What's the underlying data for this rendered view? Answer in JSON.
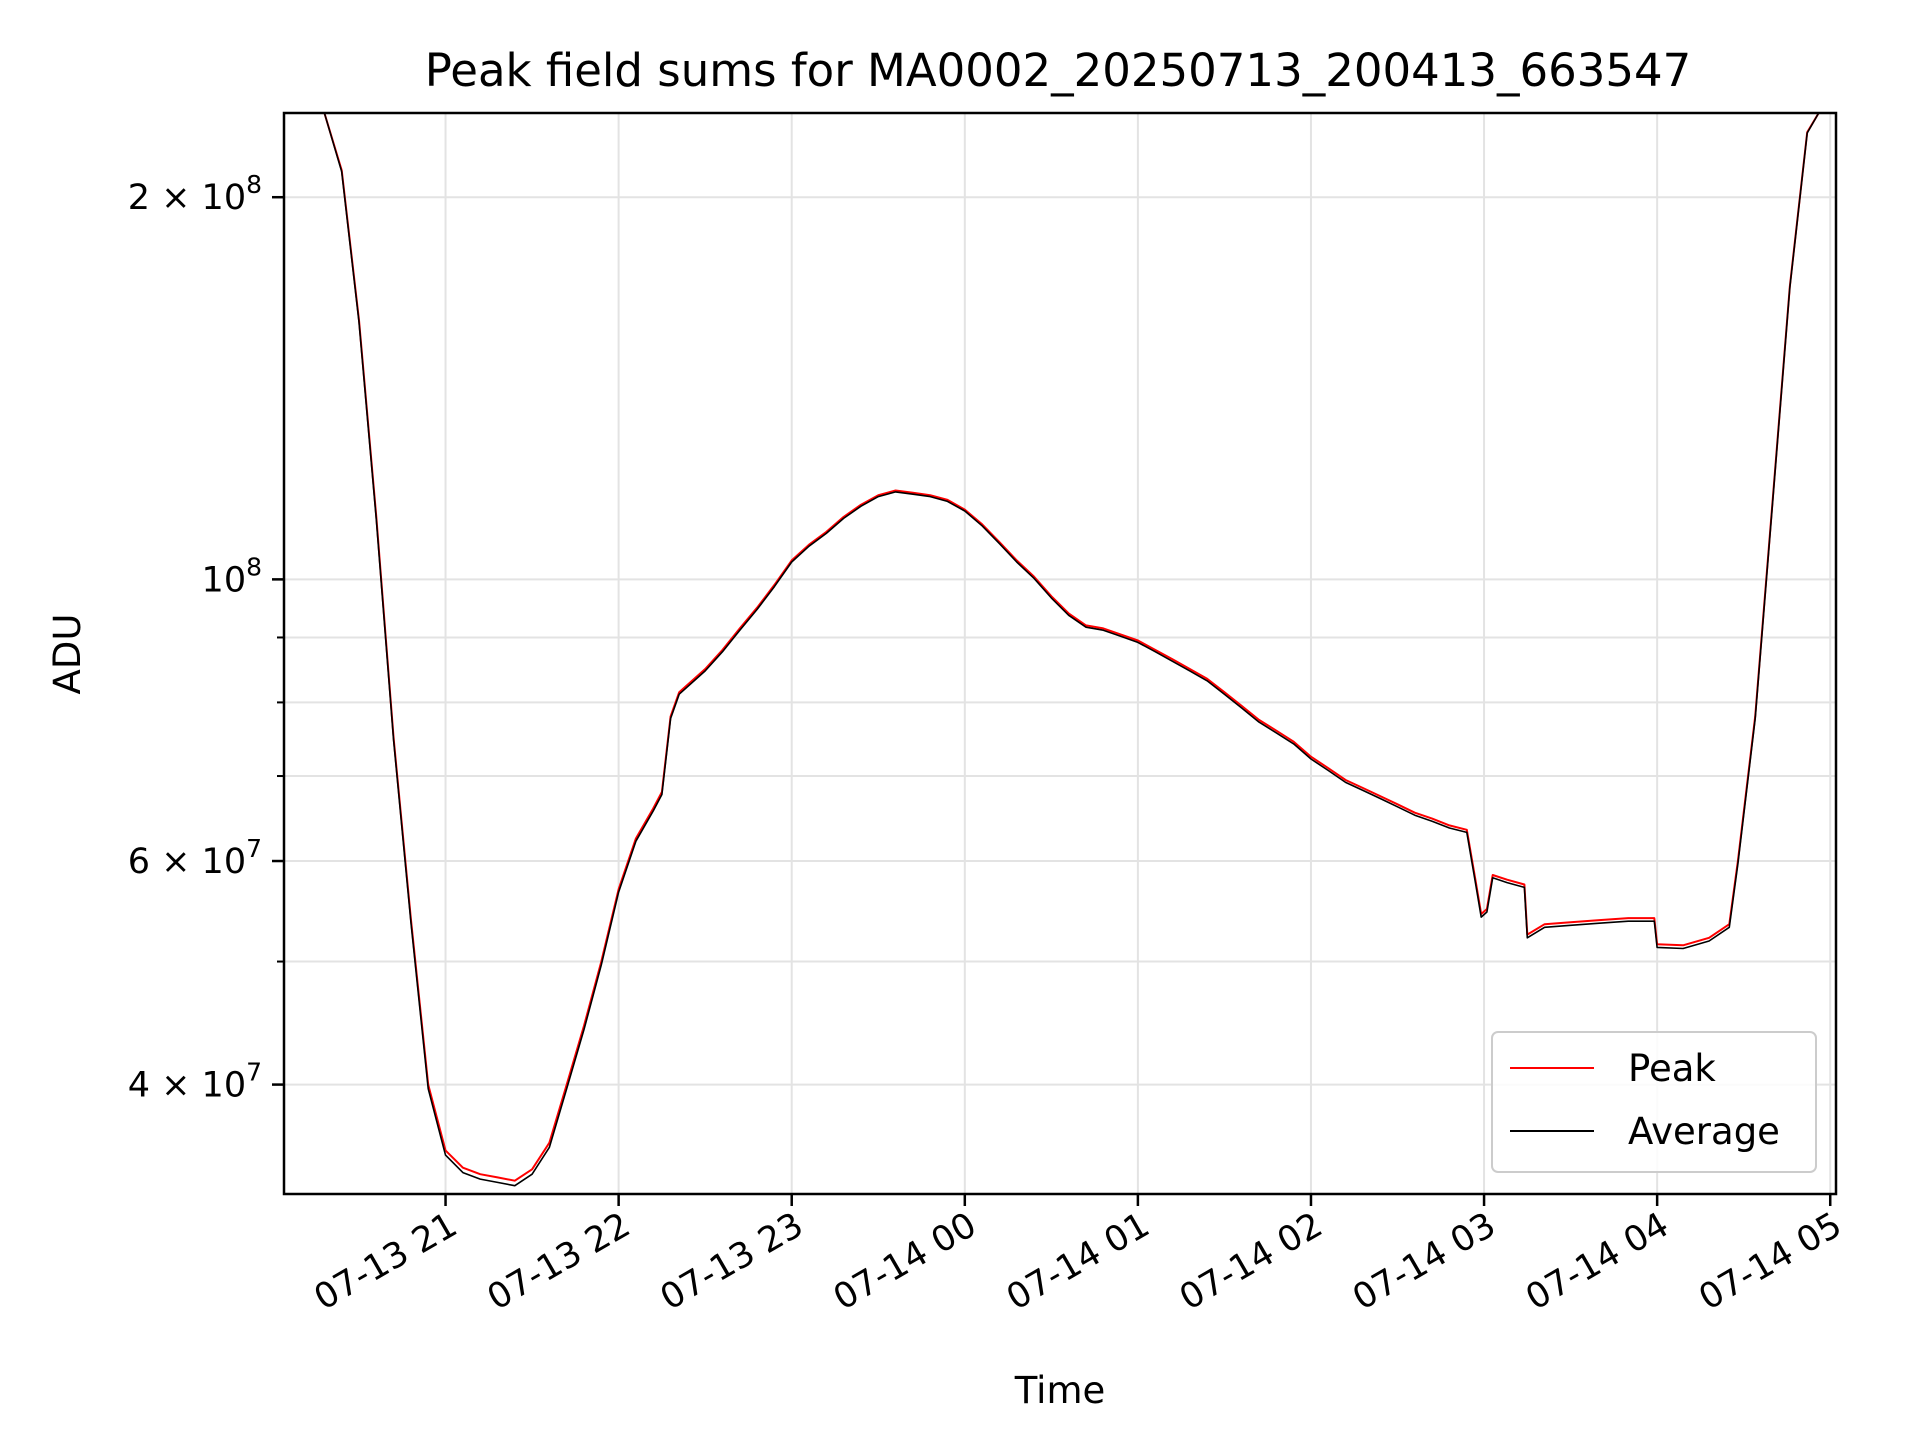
{
  "chart_data": {
    "type": "line",
    "title": "Peak field sums for MA0002_20250713_200413_663547",
    "xlabel": "Time",
    "ylabel": "ADU",
    "y_scale": "log",
    "grid": true,
    "legend_position": "lower-right",
    "xlim": [
      "2025-07-13 20:04",
      "2025-07-14 05:02"
    ],
    "ylim": [
      32800000,
      233000000
    ],
    "x_ticks": [
      {
        "label": "07-13 21",
        "value": "2025-07-13 21:00"
      },
      {
        "label": "07-13 22",
        "value": "2025-07-13 22:00"
      },
      {
        "label": "07-13 23",
        "value": "2025-07-13 23:00"
      },
      {
        "label": "07-14 00",
        "value": "2025-07-14 00:00"
      },
      {
        "label": "07-14 01",
        "value": "2025-07-14 01:00"
      },
      {
        "label": "07-14 02",
        "value": "2025-07-14 02:00"
      },
      {
        "label": "07-14 03",
        "value": "2025-07-14 03:00"
      },
      {
        "label": "07-14 04",
        "value": "2025-07-14 04:00"
      },
      {
        "label": "07-14 05",
        "value": "2025-07-14 05:00"
      }
    ],
    "y_major_ticks": [
      {
        "value": 40000000,
        "coef": "4",
        "exp": "7"
      },
      {
        "value": 60000000,
        "coef": "6",
        "exp": "7"
      },
      {
        "value": 100000000,
        "coef": "",
        "exp": "8"
      },
      {
        "value": 200000000,
        "coef": "2",
        "exp": "8"
      }
    ],
    "y_minor_ticks": [
      50000000,
      70000000,
      80000000,
      90000000
    ],
    "series": [
      {
        "name": "Peak",
        "color": "#ff0000",
        "points": [
          [
            "2025-07-13 20:04",
            233000000
          ],
          [
            "2025-07-13 20:18",
            233000000
          ],
          [
            "2025-07-13 20:24",
            210000000
          ],
          [
            "2025-07-13 20:30",
            160000000
          ],
          [
            "2025-07-13 20:36",
            112000000
          ],
          [
            "2025-07-13 20:42",
            75000000
          ],
          [
            "2025-07-13 20:48",
            54000000
          ],
          [
            "2025-07-13 20:54",
            40000000
          ],
          [
            "2025-07-13 21:00",
            35500000
          ],
          [
            "2025-07-13 21:06",
            34400000
          ],
          [
            "2025-07-13 21:12",
            34000000
          ],
          [
            "2025-07-13 21:18",
            33800000
          ],
          [
            "2025-07-13 21:24",
            33600000
          ],
          [
            "2025-07-13 21:30",
            34300000
          ],
          [
            "2025-07-13 21:36",
            36000000
          ],
          [
            "2025-07-13 21:42",
            40000000
          ],
          [
            "2025-07-13 21:48",
            44500000
          ],
          [
            "2025-07-13 21:54",
            50000000
          ],
          [
            "2025-07-13 22:00",
            57000000
          ],
          [
            "2025-07-13 22:06",
            62500000
          ],
          [
            "2025-07-13 22:12",
            66000000
          ],
          [
            "2025-07-13 22:15",
            68000000
          ],
          [
            "2025-07-13 22:18",
            78000000
          ],
          [
            "2025-07-13 22:21",
            81500000
          ],
          [
            "2025-07-13 22:30",
            85000000
          ],
          [
            "2025-07-13 22:36",
            88000000
          ],
          [
            "2025-07-13 22:42",
            91500000
          ],
          [
            "2025-07-13 22:48",
            95000000
          ],
          [
            "2025-07-13 22:54",
            99000000
          ],
          [
            "2025-07-13 23:00",
            103500000
          ],
          [
            "2025-07-13 23:06",
            106500000
          ],
          [
            "2025-07-13 23:12",
            109000000
          ],
          [
            "2025-07-13 23:18",
            112000000
          ],
          [
            "2025-07-13 23:24",
            114500000
          ],
          [
            "2025-07-13 23:30",
            116500000
          ],
          [
            "2025-07-13 23:36",
            117500000
          ],
          [
            "2025-07-13 23:42",
            117000000
          ],
          [
            "2025-07-13 23:48",
            116500000
          ],
          [
            "2025-07-13 23:54",
            115500000
          ],
          [
            "2025-07-14 00:00",
            113500000
          ],
          [
            "2025-07-14 00:06",
            110500000
          ],
          [
            "2025-07-14 00:12",
            107000000
          ],
          [
            "2025-07-14 00:18",
            103500000
          ],
          [
            "2025-07-14 00:24",
            100500000
          ],
          [
            "2025-07-14 00:30",
            97000000
          ],
          [
            "2025-07-14 00:36",
            94000000
          ],
          [
            "2025-07-14 00:42",
            92000000
          ],
          [
            "2025-07-14 00:48",
            91500000
          ],
          [
            "2025-07-14 00:54",
            90500000
          ],
          [
            "2025-07-14 01:00",
            89500000
          ],
          [
            "2025-07-14 01:06",
            88000000
          ],
          [
            "2025-07-14 01:12",
            86500000
          ],
          [
            "2025-07-14 01:18",
            85000000
          ],
          [
            "2025-07-14 01:24",
            83500000
          ],
          [
            "2025-07-14 01:30",
            81500000
          ],
          [
            "2025-07-14 01:36",
            79500000
          ],
          [
            "2025-07-14 01:42",
            77500000
          ],
          [
            "2025-07-14 01:48",
            76000000
          ],
          [
            "2025-07-14 01:54",
            74500000
          ],
          [
            "2025-07-14 02:00",
            72500000
          ],
          [
            "2025-07-14 02:06",
            71000000
          ],
          [
            "2025-07-14 02:12",
            69500000
          ],
          [
            "2025-07-14 02:18",
            68500000
          ],
          [
            "2025-07-14 02:24",
            67500000
          ],
          [
            "2025-07-14 02:30",
            66500000
          ],
          [
            "2025-07-14 02:36",
            65500000
          ],
          [
            "2025-07-14 02:42",
            64800000
          ],
          [
            "2025-07-14 02:48",
            64000000
          ],
          [
            "2025-07-14 02:54",
            63500000
          ],
          [
            "2025-07-14 02:57",
            58000000
          ],
          [
            "2025-07-14 02:59",
            54500000
          ],
          [
            "2025-07-14 03:01",
            55000000
          ],
          [
            "2025-07-14 03:03",
            58500000
          ],
          [
            "2025-07-14 03:08",
            58000000
          ],
          [
            "2025-07-14 03:14",
            57500000
          ],
          [
            "2025-07-14 03:15",
            52500000
          ],
          [
            "2025-07-14 03:21",
            53500000
          ],
          [
            "2025-07-14 03:30",
            53700000
          ],
          [
            "2025-07-14 03:40",
            53900000
          ],
          [
            "2025-07-14 03:50",
            54100000
          ],
          [
            "2025-07-14 03:59",
            54100000
          ],
          [
            "2025-07-14 04:00",
            51600000
          ],
          [
            "2025-07-14 04:09",
            51500000
          ],
          [
            "2025-07-14 04:18",
            52200000
          ],
          [
            "2025-07-14 04:25",
            53500000
          ],
          [
            "2025-07-14 04:28",
            60000000
          ],
          [
            "2025-07-14 04:34",
            78000000
          ],
          [
            "2025-07-14 04:40",
            115000000
          ],
          [
            "2025-07-14 04:46",
            170000000
          ],
          [
            "2025-07-14 04:52",
            225000000
          ],
          [
            "2025-07-14 04:56",
            233000000
          ],
          [
            "2025-07-14 05:02",
            233000000
          ]
        ]
      },
      {
        "name": "Average",
        "color": "#000000",
        "points": [
          [
            "2025-07-13 20:04",
            233000000
          ],
          [
            "2025-07-13 20:18",
            233000000
          ],
          [
            "2025-07-13 20:24",
            209500000
          ],
          [
            "2025-07-13 20:30",
            159500000
          ],
          [
            "2025-07-13 20:36",
            111500000
          ],
          [
            "2025-07-13 20:42",
            74700000
          ],
          [
            "2025-07-13 20:48",
            53700000
          ],
          [
            "2025-07-13 20:54",
            39700000
          ],
          [
            "2025-07-13 21:00",
            35200000
          ],
          [
            "2025-07-13 21:06",
            34100000
          ],
          [
            "2025-07-13 21:12",
            33700000
          ],
          [
            "2025-07-13 21:18",
            33500000
          ],
          [
            "2025-07-13 21:24",
            33300000
          ],
          [
            "2025-07-13 21:30",
            34000000
          ],
          [
            "2025-07-13 21:36",
            35700000
          ],
          [
            "2025-07-13 21:42",
            39700000
          ],
          [
            "2025-07-13 21:48",
            44200000
          ],
          [
            "2025-07-13 21:54",
            49700000
          ],
          [
            "2025-07-13 22:00",
            56700000
          ],
          [
            "2025-07-13 22:06",
            62200000
          ],
          [
            "2025-07-13 22:12",
            65700000
          ],
          [
            "2025-07-13 22:15",
            67700000
          ],
          [
            "2025-07-13 22:18",
            77700000
          ],
          [
            "2025-07-13 22:21",
            81200000
          ],
          [
            "2025-07-13 22:30",
            84700000
          ],
          [
            "2025-07-13 22:36",
            87700000
          ],
          [
            "2025-07-13 22:42",
            91200000
          ],
          [
            "2025-07-13 22:48",
            94700000
          ],
          [
            "2025-07-13 22:54",
            98700000
          ],
          [
            "2025-07-13 23:00",
            103200000
          ],
          [
            "2025-07-13 23:06",
            106200000
          ],
          [
            "2025-07-13 23:12",
            108700000
          ],
          [
            "2025-07-13 23:18",
            111700000
          ],
          [
            "2025-07-13 23:24",
            114200000
          ],
          [
            "2025-07-13 23:30",
            116200000
          ],
          [
            "2025-07-13 23:36",
            117200000
          ],
          [
            "2025-07-13 23:42",
            116700000
          ],
          [
            "2025-07-13 23:48",
            116200000
          ],
          [
            "2025-07-13 23:54",
            115200000
          ],
          [
            "2025-07-14 00:00",
            113200000
          ],
          [
            "2025-07-14 00:06",
            110200000
          ],
          [
            "2025-07-14 00:12",
            106700000
          ],
          [
            "2025-07-14 00:18",
            103200000
          ],
          [
            "2025-07-14 00:24",
            100200000
          ],
          [
            "2025-07-14 00:30",
            96700000
          ],
          [
            "2025-07-14 00:36",
            93700000
          ],
          [
            "2025-07-14 00:42",
            91700000
          ],
          [
            "2025-07-14 00:48",
            91200000
          ],
          [
            "2025-07-14 00:54",
            90200000
          ],
          [
            "2025-07-14 01:00",
            89200000
          ],
          [
            "2025-07-14 01:06",
            87700000
          ],
          [
            "2025-07-14 01:12",
            86200000
          ],
          [
            "2025-07-14 01:18",
            84700000
          ],
          [
            "2025-07-14 01:24",
            83200000
          ],
          [
            "2025-07-14 01:30",
            81200000
          ],
          [
            "2025-07-14 01:36",
            79200000
          ],
          [
            "2025-07-14 01:42",
            77200000
          ],
          [
            "2025-07-14 01:48",
            75700000
          ],
          [
            "2025-07-14 01:54",
            74200000
          ],
          [
            "2025-07-14 02:00",
            72200000
          ],
          [
            "2025-07-14 02:06",
            70700000
          ],
          [
            "2025-07-14 02:12",
            69200000
          ],
          [
            "2025-07-14 02:18",
            68200000
          ],
          [
            "2025-07-14 02:24",
            67200000
          ],
          [
            "2025-07-14 02:30",
            66200000
          ],
          [
            "2025-07-14 02:36",
            65200000
          ],
          [
            "2025-07-14 02:42",
            64500000
          ],
          [
            "2025-07-14 02:48",
            63700000
          ],
          [
            "2025-07-14 02:54",
            63200000
          ],
          [
            "2025-07-14 02:57",
            57700000
          ],
          [
            "2025-07-14 02:59",
            54200000
          ],
          [
            "2025-07-14 03:01",
            54700000
          ],
          [
            "2025-07-14 03:03",
            58200000
          ],
          [
            "2025-07-14 03:08",
            57700000
          ],
          [
            "2025-07-14 03:14",
            57200000
          ],
          [
            "2025-07-14 03:15",
            52200000
          ],
          [
            "2025-07-14 03:21",
            53200000
          ],
          [
            "2025-07-14 03:30",
            53400000
          ],
          [
            "2025-07-14 03:40",
            53600000
          ],
          [
            "2025-07-14 03:50",
            53800000
          ],
          [
            "2025-07-14 03:59",
            53800000
          ],
          [
            "2025-07-14 04:00",
            51300000
          ],
          [
            "2025-07-14 04:09",
            51200000
          ],
          [
            "2025-07-14 04:18",
            51900000
          ],
          [
            "2025-07-14 04:25",
            53200000
          ],
          [
            "2025-07-14 04:28",
            59700000
          ],
          [
            "2025-07-14 04:34",
            77700000
          ],
          [
            "2025-07-14 04:40",
            114700000
          ],
          [
            "2025-07-14 04:46",
            169700000
          ],
          [
            "2025-07-14 04:52",
            224700000
          ],
          [
            "2025-07-14 04:56",
            233000000
          ],
          [
            "2025-07-14 05:02",
            233000000
          ]
        ]
      }
    ]
  }
}
